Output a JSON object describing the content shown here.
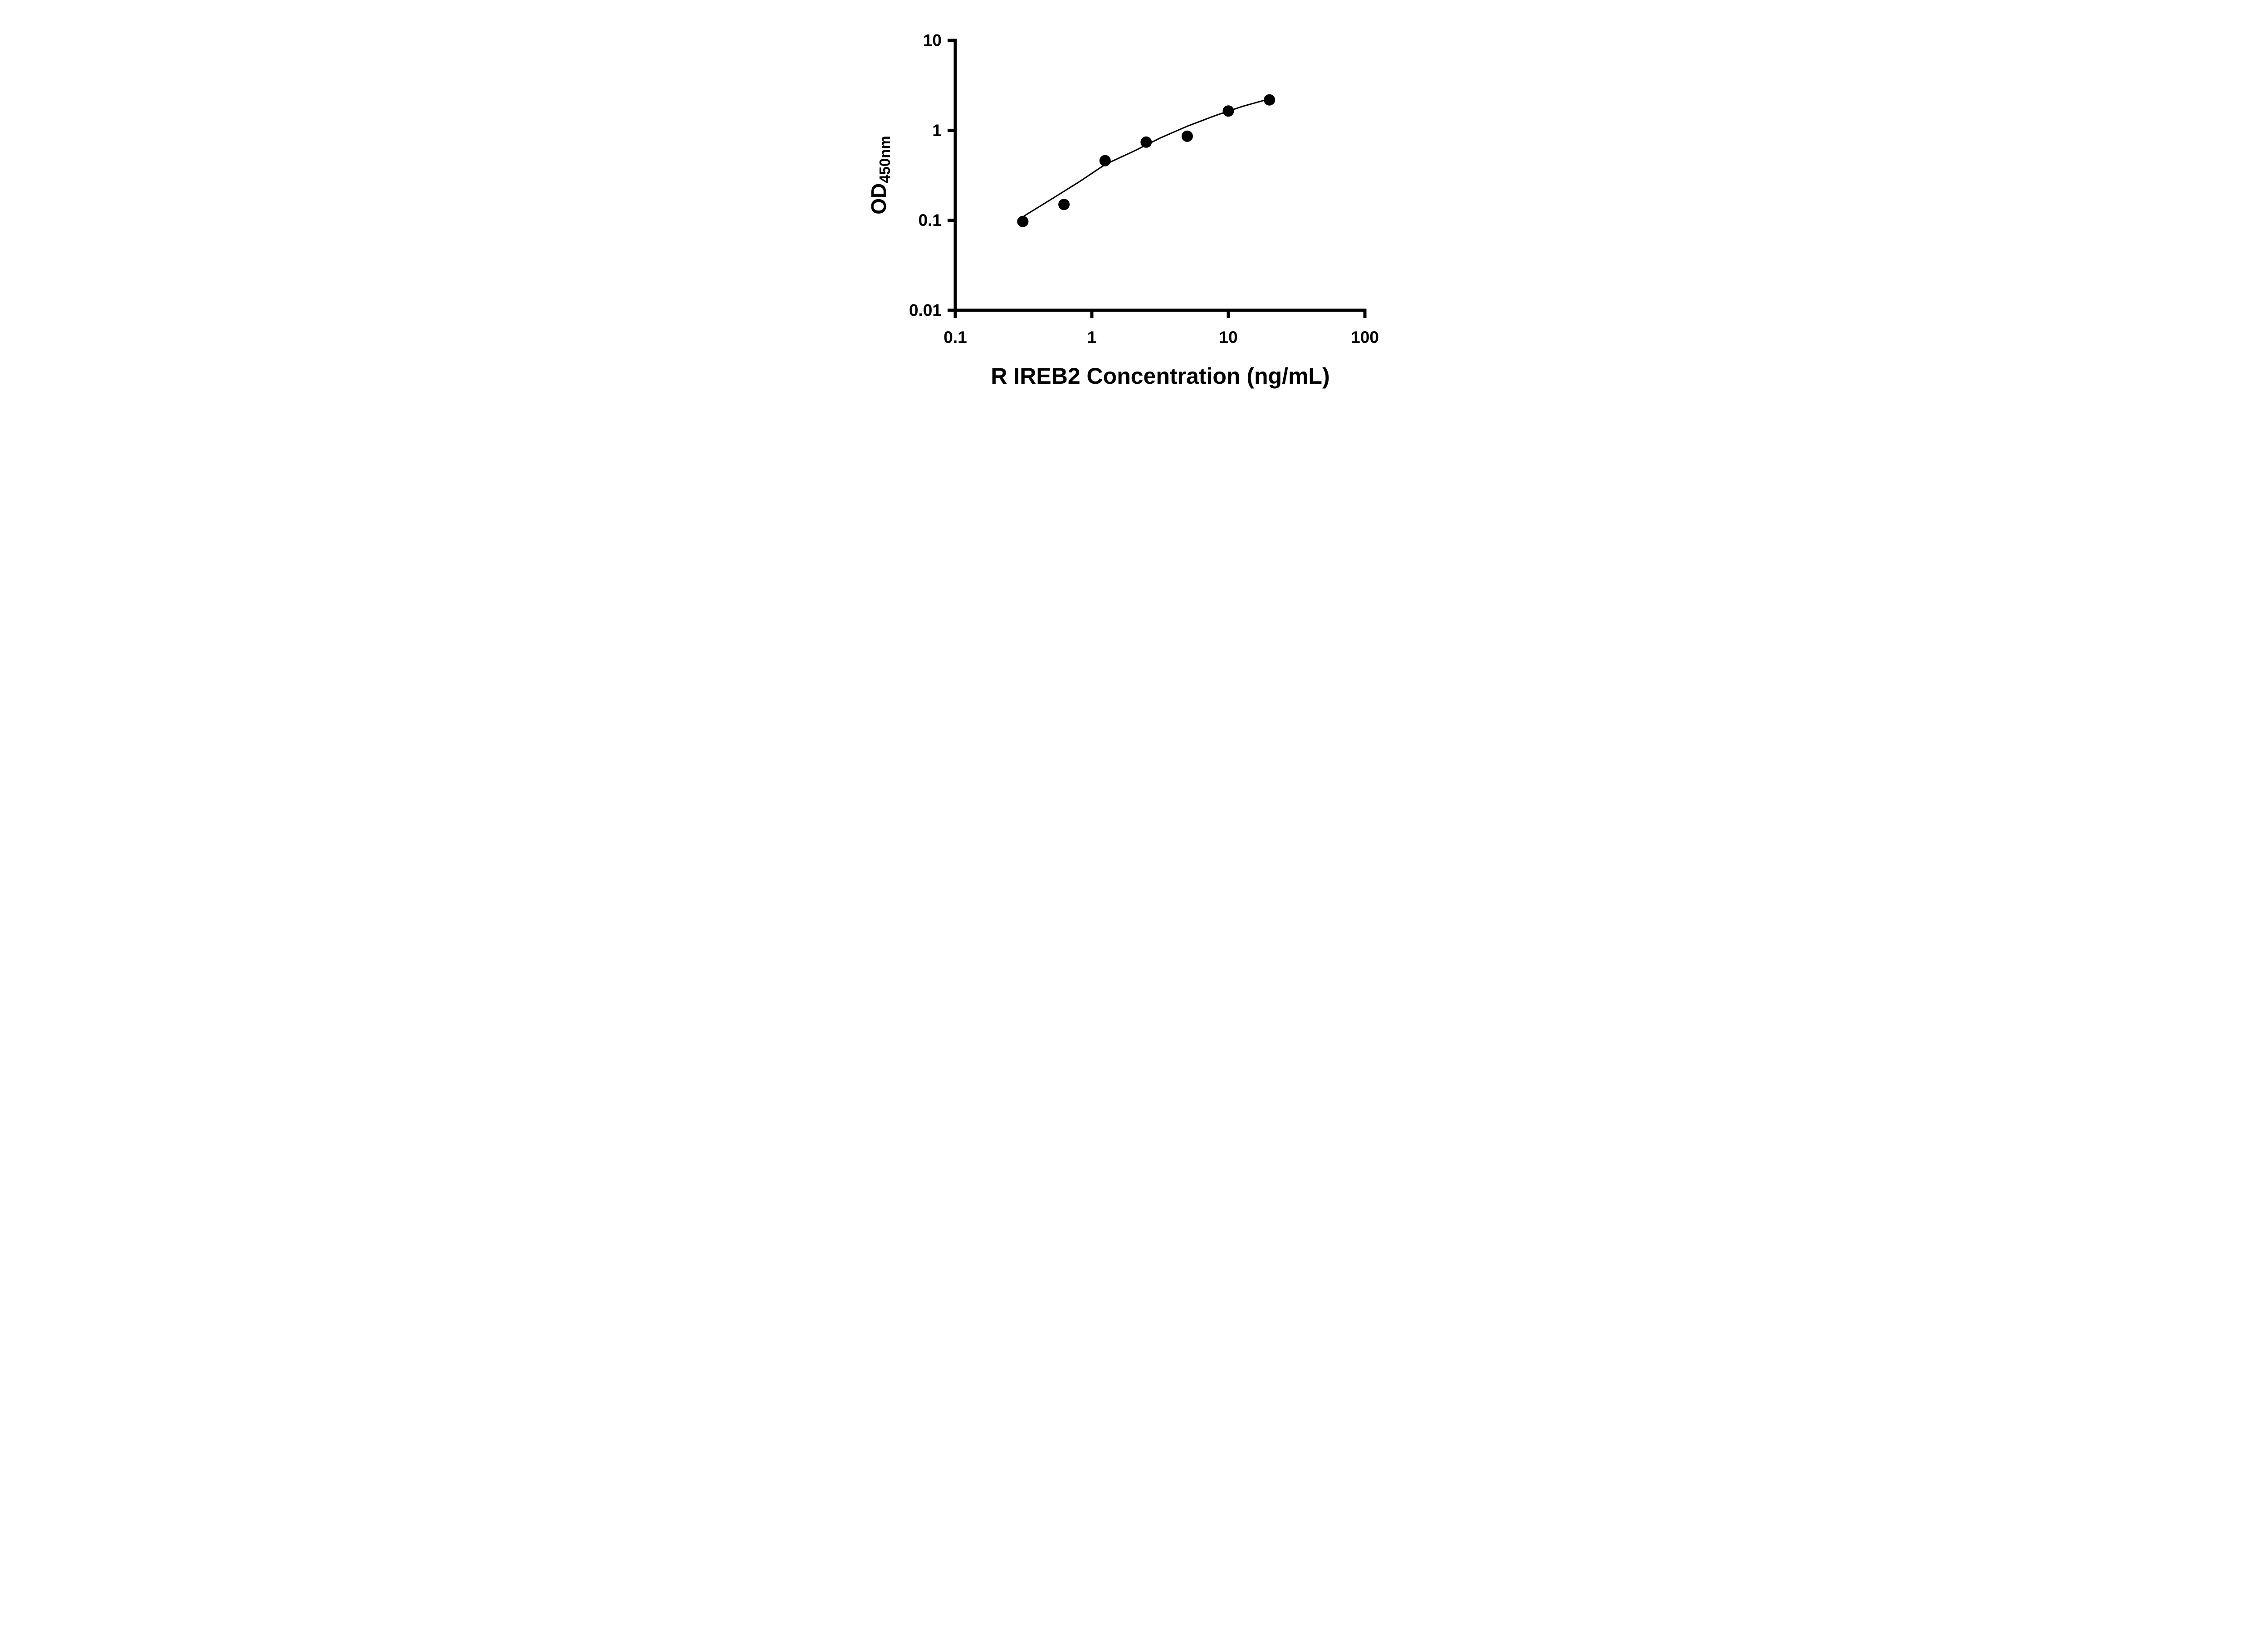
{
  "figure": {
    "background_color": "#ffffff",
    "foreground_color": "#000000"
  },
  "chart_data": {
    "type": "scatter",
    "title": "",
    "xlabel": "R IREB2 Concentration (ng/mL)",
    "ylabel_main": "OD",
    "ylabel_sub": "450nm",
    "x_scale": "log",
    "y_scale": "log",
    "xlim": [
      0.1,
      100
    ],
    "ylim": [
      0.01,
      10
    ],
    "grid": false,
    "legend_position": "none",
    "x_ticks": [
      {
        "value": 0.1,
        "label": "0.1"
      },
      {
        "value": 1,
        "label": "1"
      },
      {
        "value": 10,
        "label": "10"
      },
      {
        "value": 100,
        "label": "100"
      }
    ],
    "y_ticks": [
      {
        "value": 0.01,
        "label": "0.01"
      },
      {
        "value": 0.1,
        "label": "0.1"
      },
      {
        "value": 1,
        "label": "1"
      },
      {
        "value": 10,
        "label": "10"
      }
    ],
    "series": [
      {
        "name": "standard-points",
        "marker": "circle",
        "color": "#000000",
        "marker_diameter_px": 25,
        "points": [
          [
            0.3125,
            0.097
          ],
          [
            0.625,
            0.15
          ],
          [
            1.25,
            0.46
          ],
          [
            2.5,
            0.74
          ],
          [
            5,
            0.86
          ],
          [
            10,
            1.64
          ],
          [
            20,
            2.18
          ]
        ]
      }
    ],
    "trend_line": {
      "color": "#000000",
      "points": [
        [
          0.32,
          0.112
        ],
        [
          0.5,
          0.17
        ],
        [
          0.8,
          0.265
        ],
        [
          1.26,
          0.42
        ],
        [
          2.0,
          0.58
        ],
        [
          3.16,
          0.82
        ],
        [
          5.0,
          1.11
        ],
        [
          7.94,
          1.45
        ],
        [
          12.6,
          1.84
        ],
        [
          20.0,
          2.24
        ]
      ]
    }
  }
}
